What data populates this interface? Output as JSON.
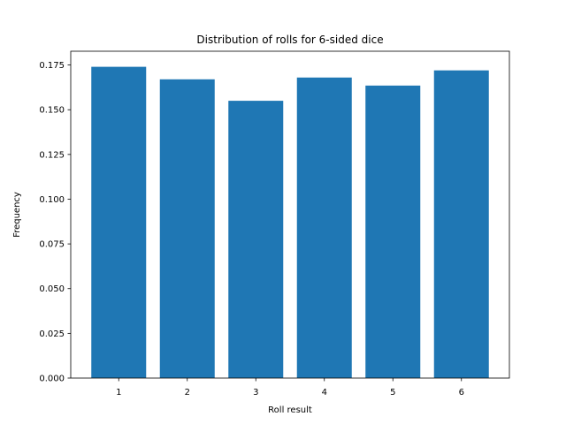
{
  "chart_data": {
    "type": "bar",
    "title": "Distribution of rolls for 6-sided dice",
    "xlabel": "Roll result",
    "ylabel": "Frequency",
    "categories": [
      "1",
      "2",
      "3",
      "4",
      "5",
      "6"
    ],
    "values": [
      0.174,
      0.167,
      0.155,
      0.168,
      0.1635,
      0.172
    ],
    "ylim": [
      0,
      0.1827
    ],
    "yticks": [
      "0.000",
      "0.025",
      "0.050",
      "0.075",
      "0.100",
      "0.125",
      "0.150",
      "0.175"
    ],
    "ytick_values": [
      0,
      0.025,
      0.05,
      0.075,
      0.1,
      0.125,
      0.15,
      0.175
    ],
    "bar_color": "#1f77b4",
    "grid": false,
    "legend": "none"
  }
}
